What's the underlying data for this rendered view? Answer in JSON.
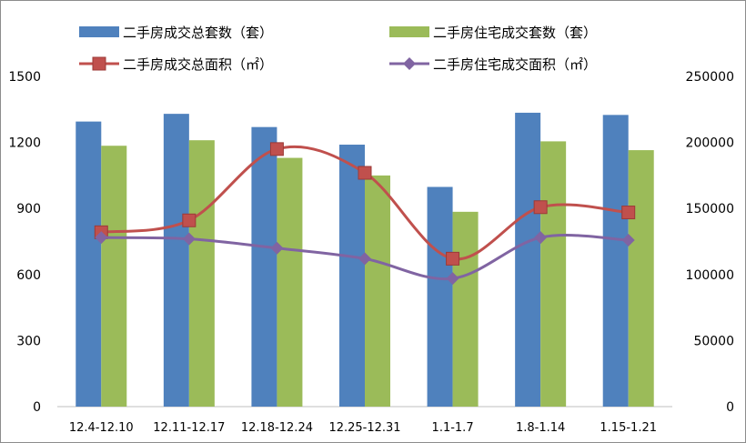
{
  "chart_data": {
    "type": "bar",
    "categories": [
      "12.4-12.10",
      "12.11-12.17",
      "12.18-12.24",
      "12.25-12.31",
      "1.1-1.7",
      "1.8-1.14",
      "1.15-1.21"
    ],
    "bar_series": [
      {
        "name": "二手房成交总套数（套）",
        "values": [
          1295,
          1330,
          1270,
          1190,
          998,
          1335,
          1325
        ],
        "color": "#4f81bd",
        "axis": "left"
      },
      {
        "name": "二手房住宅成交套数（套）",
        "values": [
          1185,
          1210,
          1130,
          1050,
          885,
          1205,
          1165
        ],
        "color": "#9bbb59",
        "axis": "left"
      }
    ],
    "line_series": [
      {
        "name": "二手房成交总面积（㎡）",
        "values": [
          132000,
          141000,
          195000,
          177000,
          112000,
          151000,
          147000
        ],
        "color": "#c0504d",
        "marker": "square",
        "axis": "right"
      },
      {
        "name": "二手房住宅成交面积（㎡）",
        "values": [
          128000,
          127000,
          120000,
          112000,
          97000,
          128000,
          126000
        ],
        "color": "#8064a2",
        "marker": "diamond",
        "axis": "right"
      }
    ],
    "left_axis": {
      "min": 0,
      "max": 1500,
      "ticks": [
        "0",
        "300",
        "600",
        "900",
        "1200",
        "1500"
      ]
    },
    "right_axis": {
      "min": 0,
      "max": 250000,
      "ticks": [
        "0",
        "50000",
        "100000",
        "150000",
        "200000",
        "250000"
      ]
    },
    "legend": "top",
    "grid": false
  }
}
